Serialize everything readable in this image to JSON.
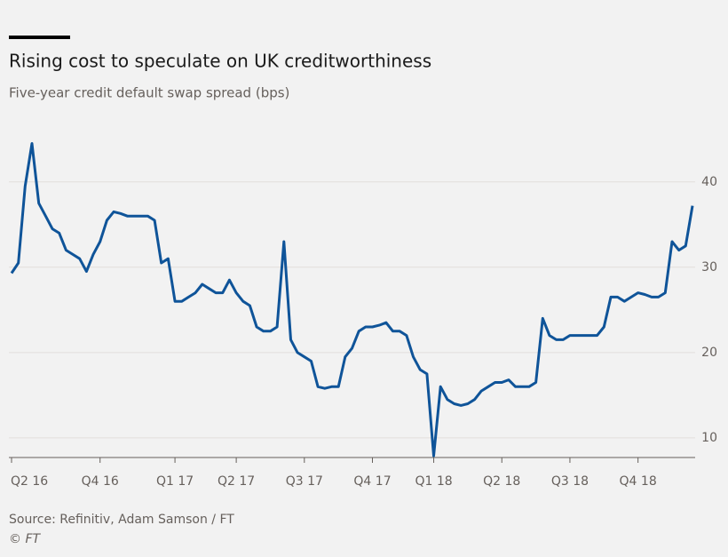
{
  "chart_data": {
    "type": "line",
    "title": "Rising cost to speculate on UK creditworthiness",
    "subtitle": "Five-year credit default swap spread (bps)",
    "source": "Source: Refinitiv, Adam Samson / FT",
    "copyright": "© FT",
    "categories": [
      "Q2 16",
      null,
      null,
      null,
      null,
      null,
      null,
      null,
      null,
      null,
      null,
      null,
      null,
      "Q4 16",
      null,
      null,
      null,
      null,
      null,
      null,
      null,
      null,
      null,
      null,
      "Q1 17",
      null,
      null,
      null,
      null,
      null,
      null,
      null,
      null,
      "Q2 17",
      null,
      null,
      null,
      null,
      null,
      null,
      null,
      null,
      null,
      "Q3 17",
      null,
      null,
      null,
      null,
      null,
      null,
      null,
      null,
      null,
      "Q4 17",
      null,
      null,
      null,
      null,
      null,
      null,
      null,
      null,
      "Q1 18",
      null,
      null,
      null,
      null,
      null,
      null,
      null,
      null,
      null,
      "Q2 18",
      null,
      null,
      null,
      null,
      null,
      null,
      null,
      null,
      null,
      "Q3 18",
      null,
      null,
      null,
      null,
      null,
      null,
      null,
      null,
      null,
      "Q4 18",
      null,
      null,
      null,
      null,
      null,
      null,
      null,
      null
    ],
    "series": [
      {
        "name": "Five-year CDS spread",
        "color": "#0f5499",
        "values": [
          29.3,
          30.5,
          39.5,
          44.5,
          37.5,
          36,
          34.5,
          34,
          32,
          31.5,
          31,
          29.5,
          31.5,
          33,
          35.5,
          36.5,
          36.3,
          36,
          36,
          36,
          36,
          35.5,
          30.5,
          31,
          26,
          26,
          26.5,
          27,
          28,
          27.5,
          27,
          27,
          28.5,
          27,
          26,
          25.5,
          23,
          22.5,
          22.5,
          23,
          33,
          21.5,
          20,
          19.5,
          19,
          16,
          15.8,
          16,
          16,
          19.5,
          20.5,
          22.5,
          23,
          23,
          23.2,
          23.5,
          22.5,
          22.5,
          22,
          19.5,
          18,
          17.5,
          7.9,
          16,
          14.5,
          14,
          13.8,
          14,
          14.5,
          15.5,
          16,
          16.5,
          16.5,
          16.8,
          16,
          16,
          16,
          16.5,
          24,
          22,
          21.5,
          21.5,
          22,
          22,
          22,
          22,
          22,
          23,
          26.5,
          26.5,
          26,
          26.5,
          27,
          26.8,
          26.5,
          26.5,
          27,
          33,
          32,
          32.5,
          37.2
        ]
      }
    ],
    "ylim": [
      7.7,
      45.7
    ],
    "yticks": [
      10,
      20,
      30,
      40
    ],
    "grid": true
  }
}
